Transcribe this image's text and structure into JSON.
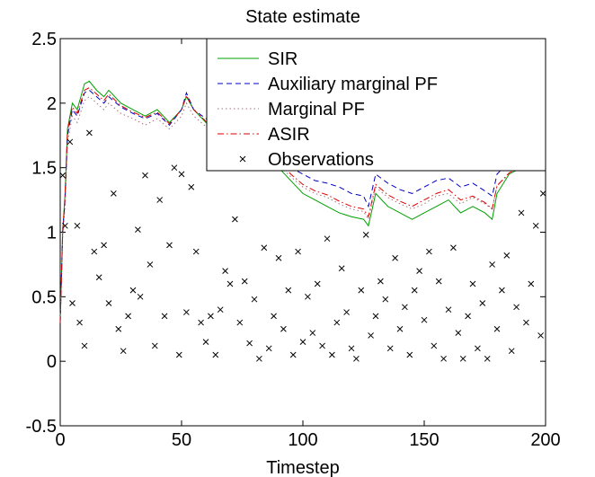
{
  "chart_data": {
    "type": "line",
    "title": "State estimate",
    "x_label": "Timestep",
    "xlim": [
      0,
      200
    ],
    "xticks": [
      0,
      50,
      100,
      150,
      200
    ],
    "ylim": [
      -0.5,
      2.5
    ],
    "yticks": [
      -0.5,
      0,
      0.5,
      1,
      1.5,
      2,
      2.5
    ],
    "legend": "top-right",
    "series": [
      {
        "name": "SIR",
        "color": "#00a000",
        "linestyle": "solid",
        "x": [
          0,
          1,
          2,
          3,
          4,
          5,
          7,
          10,
          12,
          15,
          18,
          20,
          25,
          30,
          35,
          40,
          45,
          50,
          52,
          55,
          60,
          65,
          70,
          75,
          80,
          85,
          90,
          95,
          100,
          105,
          110,
          115,
          120,
          125,
          127,
          130,
          135,
          140,
          145,
          150,
          155,
          160,
          165,
          170,
          175,
          178,
          180,
          185,
          190,
          195,
          200
        ],
        "values": [
          0.3,
          1.0,
          1.3,
          1.8,
          1.9,
          2.0,
          1.95,
          2.15,
          2.17,
          2.1,
          2.05,
          2.1,
          2.0,
          1.95,
          1.9,
          1.95,
          1.85,
          1.95,
          2.05,
          1.95,
          1.85,
          1.8,
          1.75,
          1.7,
          1.6,
          1.55,
          1.5,
          1.4,
          1.3,
          1.25,
          1.2,
          1.15,
          1.12,
          1.1,
          1.05,
          1.3,
          1.2,
          1.15,
          1.1,
          1.15,
          1.2,
          1.25,
          1.15,
          1.2,
          1.15,
          1.1,
          1.3,
          1.45,
          1.5,
          1.5,
          1.5
        ]
      },
      {
        "name": "Auxiliary marginal PF",
        "color": "#0000c0",
        "linestyle": "dashed",
        "x": [
          0,
          1,
          2,
          3,
          4,
          5,
          7,
          10,
          12,
          15,
          18,
          20,
          25,
          30,
          35,
          40,
          45,
          50,
          52,
          55,
          60,
          65,
          70,
          75,
          80,
          85,
          90,
          95,
          100,
          105,
          110,
          115,
          120,
          125,
          127,
          130,
          135,
          140,
          145,
          150,
          155,
          160,
          165,
          170,
          175,
          178,
          180,
          185,
          190,
          195,
          200
        ],
        "values": [
          0.3,
          1.0,
          1.25,
          1.75,
          1.85,
          1.95,
          1.9,
          2.08,
          2.1,
          2.05,
          2.0,
          2.05,
          1.97,
          1.92,
          1.88,
          1.92,
          1.83,
          1.95,
          2.08,
          1.95,
          1.88,
          1.85,
          1.8,
          1.75,
          1.68,
          1.62,
          1.6,
          1.5,
          1.45,
          1.4,
          1.38,
          1.35,
          1.3,
          1.28,
          1.2,
          1.45,
          1.38,
          1.33,
          1.3,
          1.35,
          1.4,
          1.42,
          1.35,
          1.38,
          1.32,
          1.28,
          1.45,
          1.55,
          1.6,
          1.58,
          1.6
        ]
      },
      {
        "name": "Marginal PF",
        "color": "#a0707a",
        "linestyle": "dotted",
        "x": [
          0,
          1,
          2,
          3,
          4,
          5,
          7,
          10,
          12,
          15,
          18,
          20,
          25,
          30,
          35,
          40,
          45,
          50,
          52,
          55,
          60,
          65,
          70,
          75,
          80,
          85,
          90,
          95,
          100,
          105,
          110,
          115,
          120,
          125,
          127,
          130,
          135,
          140,
          145,
          150,
          155,
          160,
          165,
          170,
          175,
          178,
          180,
          185,
          190,
          195,
          200
        ],
        "values": [
          0.3,
          0.95,
          1.2,
          1.7,
          1.8,
          1.9,
          1.85,
          2.02,
          2.05,
          2.0,
          1.95,
          2.0,
          1.92,
          1.88,
          1.83,
          1.88,
          1.8,
          1.9,
          2.0,
          1.9,
          1.82,
          1.78,
          1.72,
          1.68,
          1.6,
          1.55,
          1.52,
          1.43,
          1.35,
          1.3,
          1.27,
          1.22,
          1.18,
          1.16,
          1.1,
          1.35,
          1.27,
          1.22,
          1.18,
          1.22,
          1.28,
          1.3,
          1.22,
          1.27,
          1.22,
          1.18,
          1.36,
          1.45,
          1.5,
          1.48,
          1.5
        ]
      },
      {
        "name": "ASIR",
        "color": "#e00000",
        "linestyle": "dashdot",
        "x": [
          0,
          1,
          2,
          3,
          4,
          5,
          7,
          10,
          12,
          15,
          18,
          20,
          25,
          30,
          35,
          40,
          45,
          50,
          52,
          55,
          60,
          65,
          70,
          75,
          80,
          85,
          90,
          95,
          100,
          105,
          110,
          115,
          120,
          125,
          127,
          130,
          135,
          140,
          145,
          150,
          155,
          160,
          165,
          170,
          175,
          178,
          180,
          185,
          190,
          195,
          200
        ],
        "values": [
          0.3,
          1.0,
          1.28,
          1.78,
          1.88,
          1.97,
          1.92,
          2.1,
          2.12,
          2.07,
          2.02,
          2.07,
          1.98,
          1.93,
          1.89,
          1.93,
          1.84,
          1.95,
          2.06,
          1.95,
          1.86,
          1.82,
          1.77,
          1.72,
          1.63,
          1.58,
          1.55,
          1.45,
          1.37,
          1.32,
          1.29,
          1.24,
          1.2,
          1.18,
          1.12,
          1.37,
          1.29,
          1.24,
          1.2,
          1.25,
          1.3,
          1.33,
          1.25,
          1.28,
          1.23,
          1.18,
          1.36,
          1.46,
          1.5,
          1.48,
          1.5
        ]
      },
      {
        "name": "Observations",
        "color": "#000000",
        "marker": "x",
        "x": [
          1,
          2,
          4,
          5,
          7,
          8,
          10,
          12,
          14,
          16,
          18,
          20,
          22,
          24,
          26,
          28,
          30,
          32,
          33,
          35,
          37,
          39,
          41,
          43,
          45,
          47,
          49,
          50,
          52,
          54,
          56,
          58,
          60,
          62,
          64,
          66,
          68,
          70,
          72,
          74,
          76,
          78,
          80,
          82,
          84,
          86,
          88,
          90,
          92,
          94,
          96,
          98,
          100,
          102,
          104,
          106,
          108,
          110,
          112,
          114,
          116,
          118,
          120,
          122,
          124,
          126,
          128,
          130,
          132,
          134,
          136,
          138,
          140,
          142,
          144,
          146,
          148,
          150,
          152,
          154,
          156,
          158,
          160,
          162,
          164,
          166,
          168,
          170,
          172,
          174,
          176,
          178,
          180,
          182,
          184,
          186,
          188,
          190,
          192,
          194,
          196,
          198,
          199
        ],
        "values": [
          1.44,
          1.05,
          1.7,
          0.45,
          1.05,
          0.3,
          0.12,
          1.77,
          0.85,
          0.65,
          0.9,
          0.45,
          1.3,
          0.25,
          0.08,
          0.35,
          0.55,
          1.02,
          0.5,
          1.44,
          0.75,
          0.12,
          1.25,
          0.35,
          0.9,
          1.5,
          0.05,
          1.45,
          0.38,
          1.35,
          0.85,
          0.3,
          0.15,
          0.35,
          0.05,
          0.4,
          0.7,
          0.6,
          1.1,
          0.3,
          0.62,
          0.14,
          0.48,
          0.02,
          0.88,
          0.1,
          0.35,
          0.8,
          0.25,
          0.55,
          0.05,
          0.85,
          0.15,
          0.5,
          0.22,
          0.6,
          0.12,
          0.95,
          0.05,
          0.3,
          0.72,
          0.38,
          0.1,
          0.02,
          0.55,
          0.98,
          0.2,
          0.35,
          0.62,
          0.48,
          0.1,
          0.8,
          0.25,
          0.42,
          0.05,
          0.55,
          0.7,
          0.32,
          0.85,
          0.12,
          0.62,
          0.02,
          0.4,
          0.88,
          0.22,
          0.02,
          0.35,
          0.6,
          0.1,
          0.45,
          0.02,
          0.75,
          0.25,
          0.55,
          0.82,
          0.08,
          0.42,
          1.15,
          0.3,
          0.6,
          1.05,
          0.2,
          1.3
        ]
      }
    ]
  }
}
